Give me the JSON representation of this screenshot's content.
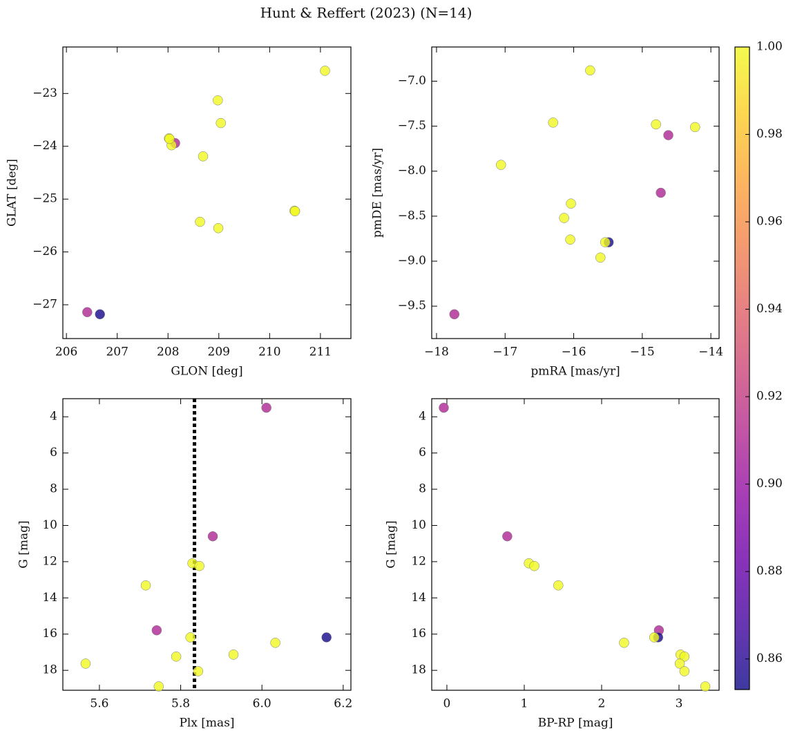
{
  "title": "Hunt & Reffert (2023) (N=14)",
  "colorbar": {
    "cmap": "plasma",
    "clim": [
      0.853,
      1.0
    ],
    "ticks": [
      0.86,
      0.88,
      {
        "value": 0.9,
        "label": "0.90"
      },
      0.92,
      0.94,
      0.96,
      0.98,
      {
        "value": 1,
        "label": "1.00"
      }
    ]
  },
  "chart_data": [
    {
      "type": "scatter",
      "xlabel": "GLON [deg]",
      "ylabel": "GLAT [deg]",
      "x": [
        211.09,
        208.98,
        209.04,
        208.02,
        208.14,
        208.07,
        208.69,
        210.49,
        210.5,
        208.63,
        208.99,
        206.41,
        206.66,
        208.03
      ],
      "y": [
        -22.57,
        -23.13,
        -23.56,
        -23.85,
        -23.94,
        -23.98,
        -24.19,
        -25.22,
        -25.23,
        -25.43,
        -25.55,
        -27.14,
        -27.18,
        -23.86
      ],
      "c": [
        1,
        1,
        1,
        1,
        0.91,
        1,
        1,
        1,
        1,
        1,
        1,
        0.91,
        0.855,
        1
      ],
      "xlim": [
        205.93,
        211.6
      ],
      "ylim": [
        -27.64,
        -22.12
      ],
      "xticks": [
        206,
        207,
        208,
        209,
        210,
        211
      ],
      "yticks": [
        {
          "value": -27,
          "label": "−27"
        },
        {
          "value": -26,
          "label": "−26"
        },
        {
          "value": -25,
          "label": "−25"
        },
        {
          "value": -24,
          "label": "−24"
        },
        {
          "value": -23,
          "label": "−23"
        }
      ]
    },
    {
      "type": "scatter",
      "xlabel": "pmRA [mas/yr]",
      "ylabel": "pmDE [mas/yr]",
      "x": [
        -15.76,
        -16.3,
        -14.8,
        -14.23,
        -14.62,
        -17.06,
        -14.73,
        -16.04,
        -16.14,
        -16.05,
        -15.49,
        -15.54,
        -15.61,
        -17.74
      ],
      "y": [
        -6.88,
        -7.46,
        -7.48,
        -7.51,
        -7.6,
        -7.93,
        -8.24,
        -8.36,
        -8.52,
        -8.76,
        -8.79,
        -8.79,
        -8.96,
        -9.59
      ],
      "c": [
        1,
        1,
        1,
        1,
        0.91,
        1,
        0.91,
        1,
        1,
        1,
        0.855,
        1,
        1,
        0.91
      ],
      "xlim": [
        -18.07,
        -13.88
      ],
      "ylim": [
        -9.86,
        -6.62
      ],
      "xticks": [
        {
          "value": -18,
          "label": "−18"
        },
        {
          "value": -17,
          "label": "−17"
        },
        {
          "value": -16,
          "label": "−16"
        },
        {
          "value": -15,
          "label": "−15"
        },
        {
          "value": -14,
          "label": "−14"
        }
      ],
      "yticks": [
        {
          "value": -9.5,
          "label": "−9.5"
        },
        {
          "value": -9,
          "label": "−9.0"
        },
        {
          "value": -8.5,
          "label": "−8.5"
        },
        {
          "value": -8,
          "label": "−8.0"
        },
        {
          "value": -7.5,
          "label": "−7.5"
        },
        {
          "value": -7,
          "label": "−7.0"
        }
      ]
    },
    {
      "type": "scatter",
      "xlabel": "Plx [mas]",
      "ylabel": "G [mag]",
      "x": [
        6.011,
        5.879,
        5.829,
        5.846,
        5.714,
        5.741,
        6.159,
        5.824,
        6.033,
        5.93,
        5.789,
        5.566,
        5.843,
        5.746
      ],
      "y": [
        3.5,
        10.6,
        12.09,
        12.24,
        13.31,
        15.79,
        16.18,
        16.18,
        16.48,
        17.13,
        17.24,
        17.63,
        18.05,
        18.89
      ],
      "c": [
        0.91,
        0.91,
        1,
        1,
        1,
        0.91,
        0.855,
        1,
        1,
        1,
        1,
        1,
        1,
        1
      ],
      "xlim": [
        5.51,
        6.219
      ],
      "ylim": [
        19.1,
        3.0
      ],
      "xticks": [
        5.6,
        5.8,
        {
          "value": 6,
          "label": "6.0"
        },
        6.2
      ],
      "yticks": [
        4,
        6,
        8,
        10,
        12,
        14,
        16,
        18
      ],
      "vline": 5.834
    },
    {
      "type": "scatter",
      "xlabel": "BP-RP [mag]",
      "ylabel": "G [mag]",
      "x": [
        -0.04,
        0.78,
        1.06,
        1.13,
        1.44,
        2.74,
        2.73,
        2.68,
        2.29,
        3.02,
        3.07,
        3.01,
        3.07,
        3.34
      ],
      "y": [
        3.5,
        10.6,
        12.09,
        12.24,
        13.31,
        15.79,
        16.18,
        16.18,
        16.48,
        17.13,
        17.24,
        17.63,
        18.05,
        18.89
      ],
      "c": [
        0.91,
        0.91,
        1,
        1,
        1,
        0.91,
        0.855,
        1,
        1,
        1,
        1,
        1,
        1,
        1
      ],
      "xlim": [
        -0.196,
        3.518
      ],
      "ylim": [
        19.1,
        3.0
      ],
      "xticks": [
        0,
        1,
        2,
        3
      ],
      "yticks": [
        4,
        6,
        8,
        10,
        12,
        14,
        16,
        18
      ]
    }
  ]
}
